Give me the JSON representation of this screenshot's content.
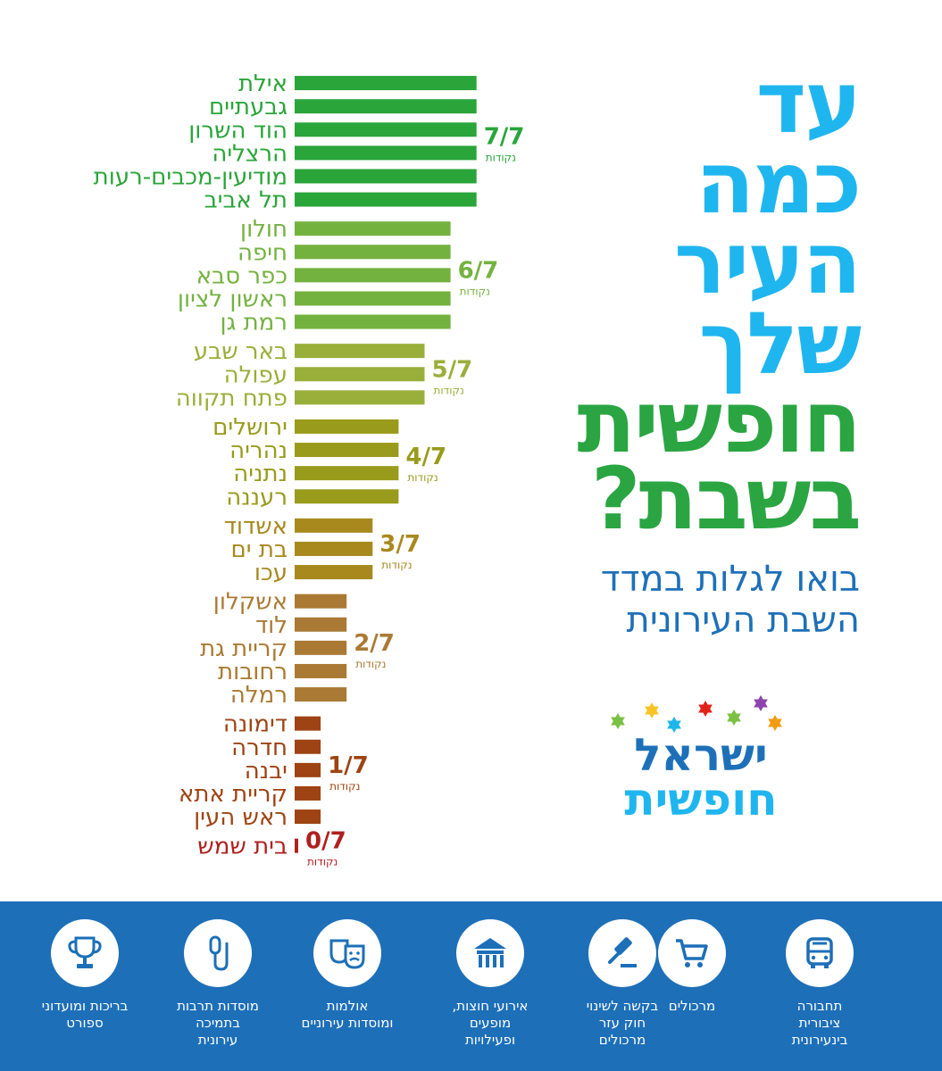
{
  "headline": {
    "line1": "עד",
    "line2": "כמה",
    "line3": "העיר",
    "line4": "שלך",
    "line5": "חופשית",
    "line6": "בשבת?"
  },
  "subtitle": {
    "line1": "בואו לגלות במדד",
    "line2": "השבת העירונית"
  },
  "logo": {
    "line1": "ישראל",
    "line2": "חופשית",
    "star_colors": [
      "#7bc043",
      "#f7c325",
      "#1fb6ef",
      "#e2231a",
      "#7bc043",
      "#8e44ad",
      "#f39c12"
    ]
  },
  "chart_data": {
    "type": "bar",
    "orientation": "horizontal",
    "max": 7,
    "unit_label": "נקודות",
    "groups": [
      {
        "label": "7/7",
        "value": 7,
        "color": "#2aa53a",
        "cities": [
          "אילת",
          "גבעתיים",
          "הוד השרון",
          "הרצליה",
          "מודיעין-מכבים-רעות",
          "תל אביב"
        ]
      },
      {
        "label": "6/7",
        "value": 6,
        "color": "#74b23f",
        "cities": [
          "חולון",
          "חיפה",
          "כפר סבא",
          "ראשון לציון",
          "רמת גן"
        ]
      },
      {
        "label": "5/7",
        "value": 5,
        "color": "#9aae3a",
        "cities": [
          "באר שבע",
          "עפולה",
          "פתח תקווה"
        ]
      },
      {
        "label": "4/7",
        "value": 4,
        "color": "#999b1c",
        "cities": [
          "ירושלים",
          "נהריה",
          "נתניה",
          "רעננה"
        ]
      },
      {
        "label": "3/7",
        "value": 3,
        "color": "#a8891e",
        "cities": [
          "אשדוד",
          "בת ים",
          "עכו"
        ]
      },
      {
        "label": "2/7",
        "value": 2,
        "color": "#aa7a34",
        "cities": [
          "אשקלון",
          "לוד",
          "קריית גת",
          "רחובות",
          "רמלה"
        ]
      },
      {
        "label": "1/7",
        "value": 1,
        "color": "#9e4313",
        "cities": [
          "דימונה",
          "חדרה",
          "יבנה",
          "קריית אתא",
          "ראש העין"
        ]
      },
      {
        "label": "0/7",
        "value": 0,
        "color": "#b01e1e",
        "cities": [
          "בית שמש"
        ]
      }
    ]
  },
  "categories": [
    {
      "label": "תחבורה\nציבורית\nבינעירונית",
      "icon": "bus-icon"
    },
    {
      "label": "מרכולים",
      "icon": "cart-icon"
    },
    {
      "label": "בקשה לשינוי\nחוק עזר\nמרכולים",
      "icon": "gavel-icon"
    },
    {
      "label": "אירועי חוצות,\nמופעים\nופעילויות",
      "icon": "tent-icon"
    },
    {
      "label": "אולמות\nומוסדות עירוניים",
      "icon": "theater-masks-icon"
    },
    {
      "label": "מוסדות תרבות\nבתמיכה\nעירונית",
      "icon": "microphone-icon"
    },
    {
      "label": "בריכות ומועדוני\nספורט",
      "icon": "trophy-icon"
    }
  ]
}
